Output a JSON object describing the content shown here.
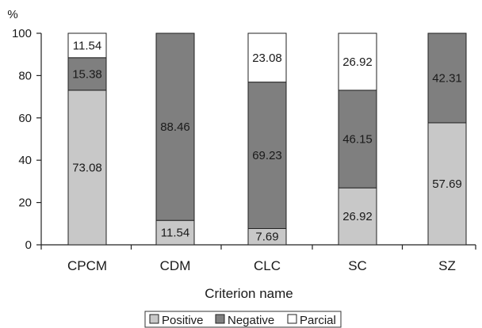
{
  "chart_data": {
    "type": "bar",
    "stacked": true,
    "ylabel": "%",
    "xlabel": "Criterion name",
    "ylim": [
      0,
      100
    ],
    "yticks": [
      0,
      20,
      40,
      60,
      80,
      100
    ],
    "categories": [
      "CPCM",
      "CDM",
      "CLC",
      "SC",
      "SZ"
    ],
    "series": [
      {
        "name": "Positive",
        "color": "#c8c8c8",
        "values": [
          73.08,
          11.54,
          7.69,
          26.92,
          57.69
        ],
        "labels": [
          "73.08",
          "11.54",
          "7.69",
          "26.92",
          "57.69"
        ]
      },
      {
        "name": "Negative",
        "color": "#7f7f7f",
        "values": [
          15.38,
          88.46,
          69.23,
          46.15,
          42.31
        ],
        "labels": [
          "15.38",
          "88.46",
          "69.23",
          "46.15",
          "42.31"
        ]
      },
      {
        "name": "Parcial",
        "color": "#ffffff",
        "values": [
          11.54,
          0,
          23.08,
          26.92,
          0
        ],
        "labels": [
          "11.54",
          "",
          "23.08",
          "26.92",
          ""
        ]
      }
    ],
    "legend_position": "bottom",
    "grid": false
  }
}
